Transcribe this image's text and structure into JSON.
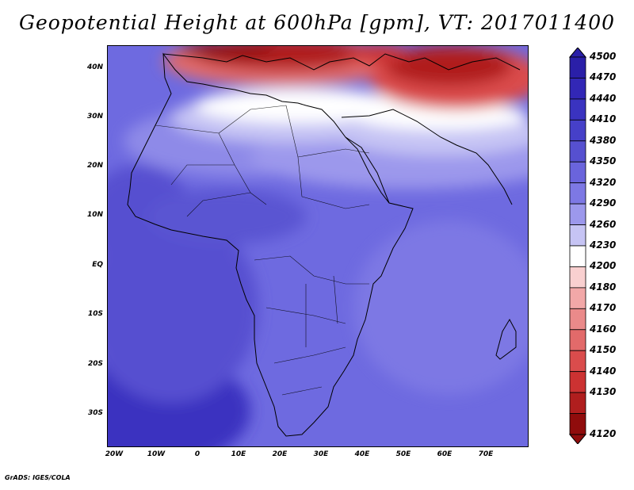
{
  "title": "Geopotential Height at 600hPa [gpm], VT: 2017011400",
  "footer": "GrADS: IGES/COLA",
  "map": {
    "lat_ticks": [
      "40N",
      "30N",
      "20N",
      "10N",
      "EQ",
      "10S",
      "20S",
      "30S"
    ],
    "lon_ticks": [
      "20W",
      "10W",
      "0",
      "10E",
      "20E",
      "30E",
      "40E",
      "50E",
      "60E",
      "70E"
    ],
    "lat_range": [
      -37,
      45
    ],
    "lon_range": [
      -22,
      80
    ]
  },
  "colorbar": {
    "levels": [
      "4500",
      "4470",
      "4440",
      "4410",
      "4380",
      "4350",
      "4320",
      "4290",
      "4260",
      "4230",
      "4200",
      "4180",
      "4170",
      "4160",
      "4150",
      "4140",
      "4130",
      "4120"
    ],
    "colors": [
      "#2a1fa8",
      "#3227b6",
      "#3a33c0",
      "#4640c8",
      "#5650d0",
      "#6a64dc",
      "#7d78e4",
      "#9c98ec",
      "#c6c4f4",
      "#ffffff",
      "#f9d0d0",
      "#f2a8a8",
      "#ea8a8a",
      "#e26a6a",
      "#da4c4c",
      "#cc3232",
      "#b01e1e",
      "#900c0c"
    ]
  }
}
